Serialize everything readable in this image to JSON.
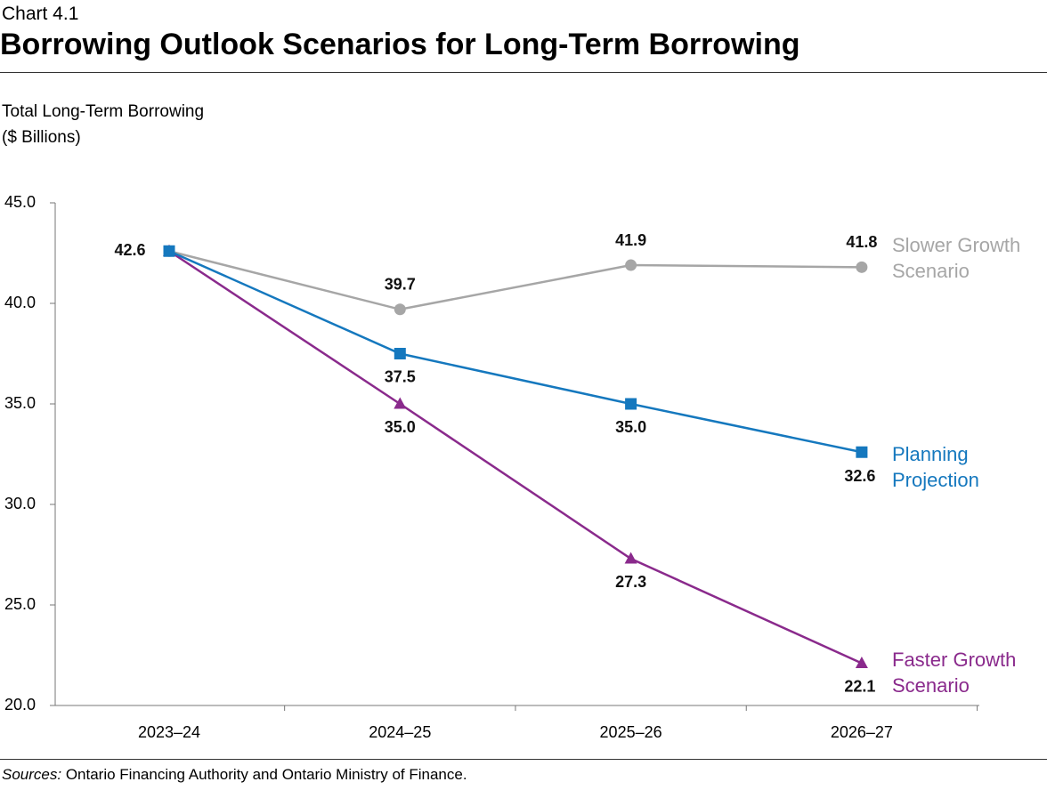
{
  "chart_data": {
    "type": "line",
    "chart_number": "Chart 4.1",
    "title": "Borrowing Outlook Scenarios for Long-Term Borrowing",
    "y_label": [
      "Total Long-Term Borrowing",
      "($ Billions)"
    ],
    "categories": [
      "2023–24",
      "2024–25",
      "2025–26",
      "2026–27"
    ],
    "ylim": [
      20,
      45
    ],
    "yticks": [
      {
        "value": 20,
        "label": "20.0"
      },
      {
        "value": 25,
        "label": "25.0"
      },
      {
        "value": 30,
        "label": "30.0"
      },
      {
        "value": 35,
        "label": "35.0"
      },
      {
        "value": 40,
        "label": "40.0"
      },
      {
        "value": 45,
        "label": "45.0"
      }
    ],
    "series": [
      {
        "name": "Slower Growth Scenario",
        "color": "#a6a6a6",
        "marker": "circle",
        "values": [
          42.6,
          39.7,
          41.9,
          41.8
        ],
        "value_labels": [
          null,
          "39.7",
          "41.9",
          "41.8"
        ]
      },
      {
        "name": "Faster Growth Scenario",
        "color": "#8a2a8c",
        "marker": "triangle",
        "values": [
          42.6,
          35,
          27.3,
          22.1
        ],
        "value_labels": [
          null,
          "35.0",
          "27.3",
          "22.1"
        ]
      },
      {
        "name": "Planning Projection",
        "color": "#1578be",
        "marker": "square",
        "values": [
          42.6,
          37.5,
          35,
          32.6
        ],
        "value_labels": [
          "42.6",
          "37.5",
          "35.0",
          "32.6"
        ]
      }
    ],
    "source_label": "Sources:",
    "source": "Ontario Financing Authority and Ontario Ministry of Finance."
  }
}
